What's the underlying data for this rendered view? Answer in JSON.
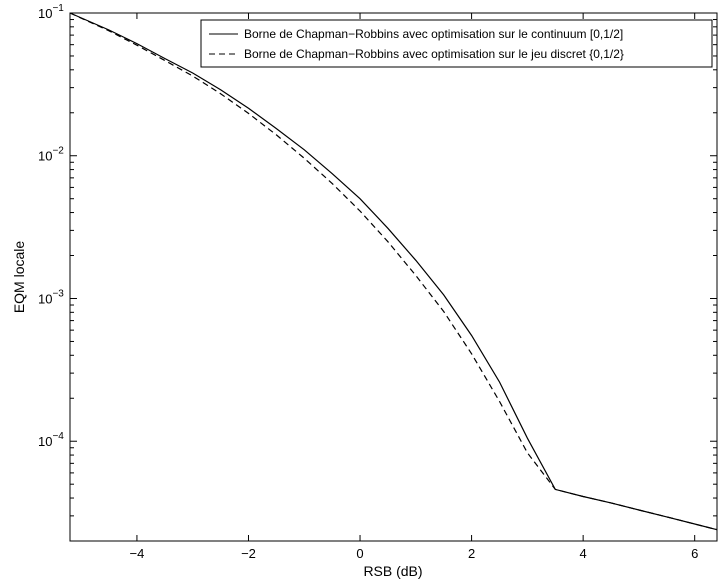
{
  "chart_data": {
    "type": "line",
    "title": "",
    "xlabel": "RSB (dB)",
    "ylabel": "EQM locale",
    "xlim": [
      -5.2,
      6.4
    ],
    "ylim": [
      2e-05,
      0.1
    ],
    "yscale": "log",
    "grid": false,
    "legend_position": "top-right",
    "x_ticks": [
      -4,
      -2,
      0,
      2,
      4,
      6
    ],
    "x_tick_labels": [
      "−4",
      "−2",
      "0",
      "2",
      "4",
      "6"
    ],
    "y_ticks": [
      {
        "value": 0.1,
        "base": "10",
        "exponent": "−1"
      },
      {
        "value": 0.01,
        "base": "10",
        "exponent": "−2"
      },
      {
        "value": 0.001,
        "base": "10",
        "exponent": "−3"
      },
      {
        "value": 0.0001,
        "base": "10",
        "exponent": "−4"
      }
    ],
    "series": [
      {
        "name": "Borne de Chapman−Robbins avec optimisation sur le continuum [0,1/2]",
        "style": "solid",
        "color": "#000000",
        "x": [
          -5.2,
          -4.5,
          -4.0,
          -3.5,
          -3.0,
          -2.5,
          -2.0,
          -1.5,
          -1.0,
          -0.5,
          0.0,
          0.5,
          1.0,
          1.5,
          2.0,
          2.5,
          3.0,
          3.5,
          4.0,
          4.5,
          5.0,
          5.5,
          6.0,
          6.4
        ],
        "y": [
          0.1,
          0.076,
          0.061,
          0.048,
          0.038,
          0.029,
          0.0215,
          0.0155,
          0.011,
          0.0075,
          0.005,
          0.0031,
          0.00185,
          0.00106,
          0.00055,
          0.00026,
          0.000105,
          4.6e-05,
          4.1e-05,
          3.7e-05,
          3.3e-05,
          2.95e-05,
          2.63e-05,
          2.4e-05
        ]
      },
      {
        "name": "Borne de Chapman−Robbins avec optimisation sur le jeu discret {0,1/2}",
        "style": "dashed",
        "color": "#000000",
        "x": [
          -5.2,
          -4.5,
          -4.0,
          -3.5,
          -3.0,
          -2.5,
          -2.0,
          -1.5,
          -1.0,
          -0.5,
          0.0,
          0.5,
          1.0,
          1.5,
          2.0,
          2.5,
          3.0,
          3.5,
          4.0,
          4.5,
          5.0,
          5.5,
          6.0,
          6.4
        ],
        "y": [
          0.1,
          0.075,
          0.0595,
          0.0465,
          0.0362,
          0.0272,
          0.0198,
          0.014,
          0.0096,
          0.0064,
          0.0041,
          0.0025,
          0.00145,
          0.00081,
          0.00041,
          0.00019,
          8.3e-05,
          4.6e-05,
          4.1e-05,
          3.7e-05,
          3.3e-05,
          2.95e-05,
          2.63e-05,
          2.4e-05
        ]
      }
    ]
  }
}
